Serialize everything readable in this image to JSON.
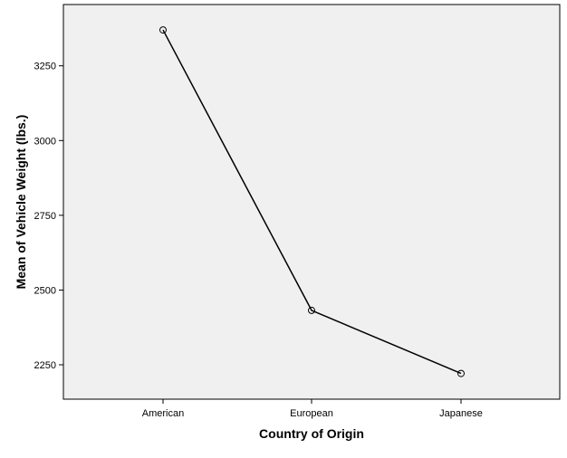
{
  "chart_data": {
    "type": "line",
    "title": "",
    "xlabel": "Country of Origin",
    "ylabel": "Mean of Vehicle Weight (lbs.)",
    "categories": [
      "American",
      "European",
      "Japanese"
    ],
    "series": [
      {
        "values": [
          3370,
          2432,
          2221
        ],
        "marker": "hollow-circle"
      }
    ],
    "ylim": [
      2135,
      3455
    ],
    "yticks": [
      2250,
      2500,
      2750,
      3000,
      3250
    ],
    "ytick_labels": [
      "2250",
      "2500",
      "2750",
      "3000",
      "3250"
    ],
    "grid": false,
    "legend": "none",
    "colors": {
      "plot_background": "#f0f0f0",
      "line": "#000000",
      "axis": "#000000"
    }
  }
}
